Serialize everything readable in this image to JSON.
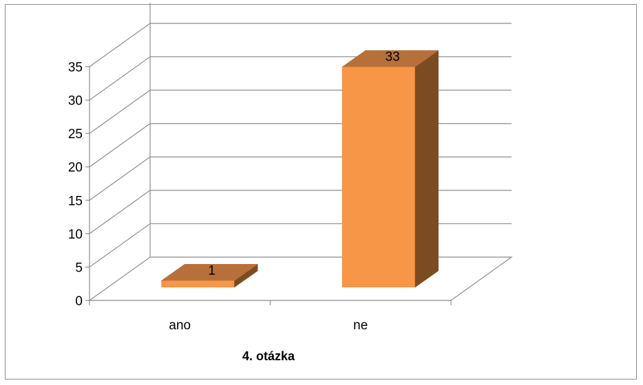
{
  "chart_data": {
    "type": "bar",
    "three_d": true,
    "categories": [
      "ano",
      "ne"
    ],
    "series": [
      {
        "values": [
          1,
          33
        ]
      }
    ],
    "data_labels": [
      "1",
      "33"
    ],
    "xlabel": "4. otázka",
    "ylabel": "",
    "ylim": [
      0,
      35
    ],
    "y_ticks": [
      "0",
      "5",
      "10",
      "15",
      "20",
      "25",
      "30",
      "35"
    ],
    "grid": true,
    "legend": "none",
    "colors": {
      "bar_front": "#f79646",
      "bar_top": "#b8703a",
      "bar_side": "#7d4b22",
      "grid": "#8c8c8c",
      "axis": "#8c8c8c"
    }
  }
}
